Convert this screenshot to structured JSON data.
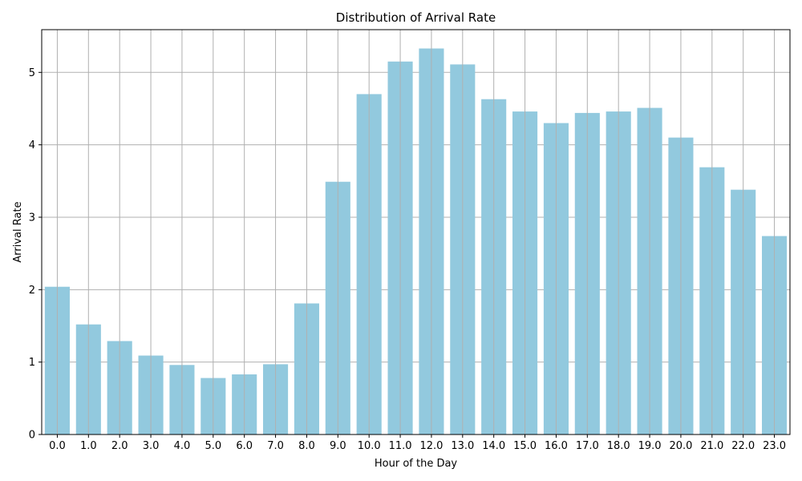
{
  "chart_data": {
    "type": "bar",
    "title": "Distribution of Arrival Rate",
    "xlabel": "Hour of the Day",
    "ylabel": "Arrival Rate",
    "categories": [
      "0.0",
      "1.0",
      "2.0",
      "3.0",
      "4.0",
      "5.0",
      "6.0",
      "7.0",
      "8.0",
      "9.0",
      "10.0",
      "11.0",
      "12.0",
      "13.0",
      "14.0",
      "15.0",
      "16.0",
      "17.0",
      "18.0",
      "19.0",
      "20.0",
      "21.0",
      "22.0",
      "23.0"
    ],
    "values": [
      2.04,
      1.52,
      1.29,
      1.09,
      0.96,
      0.78,
      0.83,
      0.97,
      1.81,
      3.49,
      4.7,
      5.15,
      5.33,
      5.11,
      4.63,
      4.46,
      4.3,
      4.44,
      4.46,
      4.51,
      4.1,
      3.69,
      3.38,
      2.74
    ],
    "ylim": [
      0,
      5.59
    ],
    "yticks": [
      0,
      1,
      2,
      3,
      4,
      5
    ],
    "grid": true,
    "bar_color": "#92c9de",
    "grid_color": "#b0b0b0"
  }
}
